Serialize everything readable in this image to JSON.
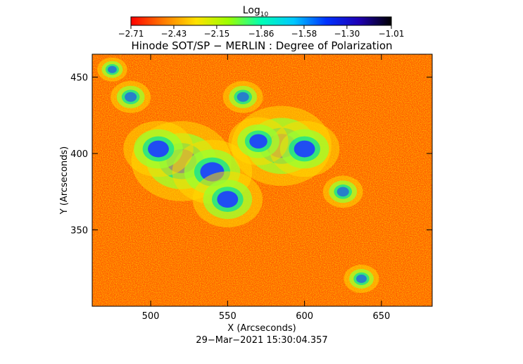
{
  "colorbar": {
    "label": "Log",
    "label_sub": "10",
    "ticks": [
      "−2.71",
      "−2.43",
      "−2.15",
      "−1.86",
      "−1.58",
      "−1.30",
      "−1.01"
    ],
    "tick_values": [
      -2.71,
      -2.43,
      -2.15,
      -1.86,
      -1.58,
      -1.3,
      -1.01
    ],
    "colors": [
      "#ff0000",
      "#ff7a00",
      "#ffe100",
      "#9bff00",
      "#00ffb4",
      "#00c8ff",
      "#0032ff",
      "#1e00b4",
      "#000000"
    ]
  },
  "chart_data": {
    "type": "heatmap",
    "title": "Hinode SOT/SP − MERLIN : Degree of Polarization",
    "xlabel": "X (Arcseconds)",
    "ylabel": "Y (Arcseconds)",
    "xlim": [
      462,
      683
    ],
    "ylim": [
      300,
      465
    ],
    "xticks": [
      500,
      550,
      600,
      650
    ],
    "yticks": [
      350,
      400,
      450
    ],
    "value_range": [
      -2.71,
      -1.01
    ],
    "background_level": -2.6,
    "high_polarization_regions": [
      {
        "x": 520,
        "y": 395,
        "strength": 1.0
      },
      {
        "x": 540,
        "y": 388,
        "strength": 0.8
      },
      {
        "x": 505,
        "y": 403,
        "strength": 0.7
      },
      {
        "x": 550,
        "y": 370,
        "strength": 0.7
      },
      {
        "x": 585,
        "y": 405,
        "strength": 1.0
      },
      {
        "x": 600,
        "y": 403,
        "strength": 0.7
      },
      {
        "x": 570,
        "y": 408,
        "strength": 0.6
      },
      {
        "x": 560,
        "y": 437,
        "strength": 0.4
      },
      {
        "x": 487,
        "y": 437,
        "strength": 0.4
      },
      {
        "x": 625,
        "y": 375,
        "strength": 0.4
      },
      {
        "x": 637,
        "y": 318,
        "strength": 0.35
      },
      {
        "x": 475,
        "y": 455,
        "strength": 0.3
      }
    ]
  },
  "footer": {
    "timestamp": "29−Mar−2021 15:30:04.357"
  }
}
